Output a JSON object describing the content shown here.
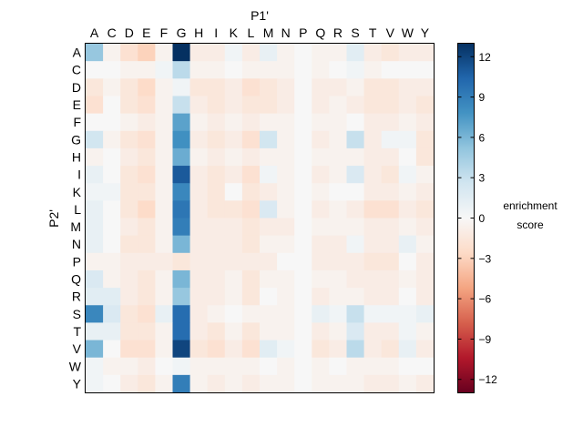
{
  "chart_data": {
    "type": "heatmap",
    "title": "",
    "xlabel": "P1'",
    "ylabel": "P2'",
    "x_categories": [
      "A",
      "C",
      "D",
      "E",
      "F",
      "G",
      "H",
      "I",
      "K",
      "L",
      "M",
      "N",
      "P",
      "Q",
      "R",
      "S",
      "T",
      "V",
      "W",
      "Y"
    ],
    "y_categories": [
      "A",
      "C",
      "D",
      "E",
      "F",
      "G",
      "H",
      "I",
      "K",
      "L",
      "M",
      "N",
      "P",
      "Q",
      "R",
      "S",
      "T",
      "V",
      "W",
      "Y"
    ],
    "values": [
      [
        5,
        -0.5,
        -2,
        -3,
        -0.5,
        13,
        -1,
        -1,
        0.5,
        -1,
        1,
        -0.5,
        0,
        -0.5,
        -0.5,
        1.5,
        -1,
        -1.5,
        -1,
        -1
      ],
      [
        0,
        0,
        -0.5,
        -0.5,
        0.5,
        3.5,
        -0.5,
        -0.5,
        0,
        -0.5,
        -0.5,
        -0.5,
        0,
        -0.5,
        0,
        0.5,
        -0.5,
        0,
        0,
        0
      ],
      [
        -1.5,
        -0.5,
        -1.5,
        -2.5,
        -0.5,
        0.5,
        -1.5,
        -1.5,
        -1,
        -2,
        -1.5,
        -1,
        0,
        -1,
        -1,
        -0.5,
        -1.5,
        -1.5,
        -1,
        -1
      ],
      [
        -2,
        0,
        -1.5,
        -2,
        -0.5,
        3,
        -1,
        -1.5,
        -1,
        -1.5,
        -1.5,
        -1,
        0,
        -1,
        -0.5,
        -1,
        -1.5,
        -1.5,
        -1,
        -1.5
      ],
      [
        0,
        0,
        -0.5,
        -1,
        -0.5,
        7,
        -0.5,
        -1,
        -0.5,
        -1,
        -0.5,
        -0.5,
        0,
        -0.5,
        -0.5,
        0,
        -1,
        -1,
        -0.5,
        -1
      ],
      [
        2.5,
        -0.5,
        -1.5,
        -2,
        -0.5,
        8,
        -1,
        -1.5,
        -1,
        -2,
        2.5,
        -0.5,
        0,
        -1,
        -0.5,
        3,
        -1,
        0.5,
        0.5,
        -1.5
      ],
      [
        -0.5,
        0,
        -1,
        -1.5,
        -0.5,
        6.5,
        -0.5,
        -1,
        -0.5,
        -1,
        -0.5,
        -0.5,
        0,
        -0.5,
        -0.5,
        -0.5,
        -1,
        -1,
        0,
        -1.5
      ],
      [
        1,
        0,
        -1.5,
        -2,
        -0.5,
        11,
        -1,
        -1.5,
        -1,
        -2,
        0.5,
        -0.5,
        0,
        -1,
        -0.5,
        2,
        -1,
        -1.5,
        0.5,
        -0.5
      ],
      [
        0.5,
        0.5,
        -1.5,
        -1.5,
        -0.5,
        8.5,
        -1,
        -1.5,
        0,
        -1.5,
        -1,
        -0.5,
        0,
        -0.5,
        0,
        0,
        -1,
        -1,
        -0.5,
        -1
      ],
      [
        1,
        0,
        -1.5,
        -2.5,
        -0.5,
        9.5,
        -1,
        -1.5,
        -1.5,
        -2,
        2,
        -0.5,
        0,
        -1,
        -0.5,
        -1,
        -2,
        -2,
        -1,
        -1.5
      ],
      [
        1,
        0,
        -1,
        -1.5,
        -0.5,
        9,
        -1,
        -1,
        -1,
        -1.5,
        -1,
        -1,
        0,
        -0.5,
        -0.5,
        -0.5,
        -1,
        -1,
        -0.5,
        -1
      ],
      [
        1,
        0,
        -1.5,
        -1.5,
        -0.5,
        6,
        -1,
        -1,
        -1,
        -1.5,
        -0.5,
        -0.5,
        0,
        -1,
        -1,
        0.5,
        -1,
        -1,
        1,
        -0.5
      ],
      [
        -0.5,
        -0.5,
        -1,
        -1,
        -1,
        -1.5,
        -1,
        -1,
        -1,
        -1,
        -1,
        0,
        0,
        -1,
        -1,
        -1,
        -1.5,
        -1.5,
        0,
        -1
      ],
      [
        2,
        -0.5,
        -1,
        -1.5,
        -0.5,
        6,
        -1,
        -1,
        -0.5,
        -1.5,
        -0.5,
        -0.5,
        0,
        -0.5,
        -0.5,
        -1,
        -1,
        -1,
        -0.5,
        -1
      ],
      [
        1.5,
        1.5,
        -1,
        -1.5,
        -0.5,
        5,
        -1,
        -1,
        -0.5,
        -1.5,
        0,
        -0.5,
        0,
        -1,
        -0.5,
        -0.5,
        -1,
        -1,
        0,
        -1
      ],
      [
        8.5,
        2,
        -1.5,
        -2,
        1,
        10,
        -1,
        -0.5,
        0,
        -0.5,
        -0.5,
        -0.5,
        0,
        1,
        0.5,
        3,
        0.5,
        0.5,
        0.5,
        1
      ],
      [
        1,
        1,
        -1.5,
        -1.5,
        -0.5,
        10,
        -1,
        -1.5,
        -0.5,
        -1.5,
        -0.5,
        -0.5,
        0,
        -1,
        -0.5,
        2,
        -1,
        -1,
        0.5,
        -0.5
      ],
      [
        6,
        0,
        -2,
        -2,
        -0.5,
        12,
        -1.5,
        -2,
        -1,
        -2,
        1.5,
        0.5,
        0,
        -1.5,
        -1,
        3.5,
        -1,
        -1.5,
        1,
        -1
      ],
      [
        0.5,
        -0.5,
        -0.5,
        -1,
        0,
        0.5,
        -0.5,
        -0.5,
        -0.5,
        -0.5,
        0,
        -0.5,
        0,
        -0.5,
        0,
        -0.5,
        -0.5,
        -0.5,
        0,
        0
      ],
      [
        0.5,
        0,
        -1,
        -1.5,
        -0.5,
        9,
        -0.5,
        -1,
        -0.5,
        -1,
        -0.5,
        -0.5,
        0,
        -0.5,
        -0.5,
        -0.5,
        -1,
        -1,
        -0.5,
        -1
      ]
    ],
    "vmin": -13,
    "vmax": 13,
    "colorbar": {
      "label_lines": [
        "enrichment",
        "score"
      ],
      "ticks": [
        12,
        9,
        6,
        3,
        0,
        -3,
        -6,
        -9,
        -12
      ]
    },
    "colormap": [
      "#67001f",
      "#b2182b",
      "#d6604d",
      "#f4a582",
      "#fddbc7",
      "#f7f7f7",
      "#d1e5f0",
      "#92c5de",
      "#4393c3",
      "#2166ac",
      "#053061"
    ]
  }
}
